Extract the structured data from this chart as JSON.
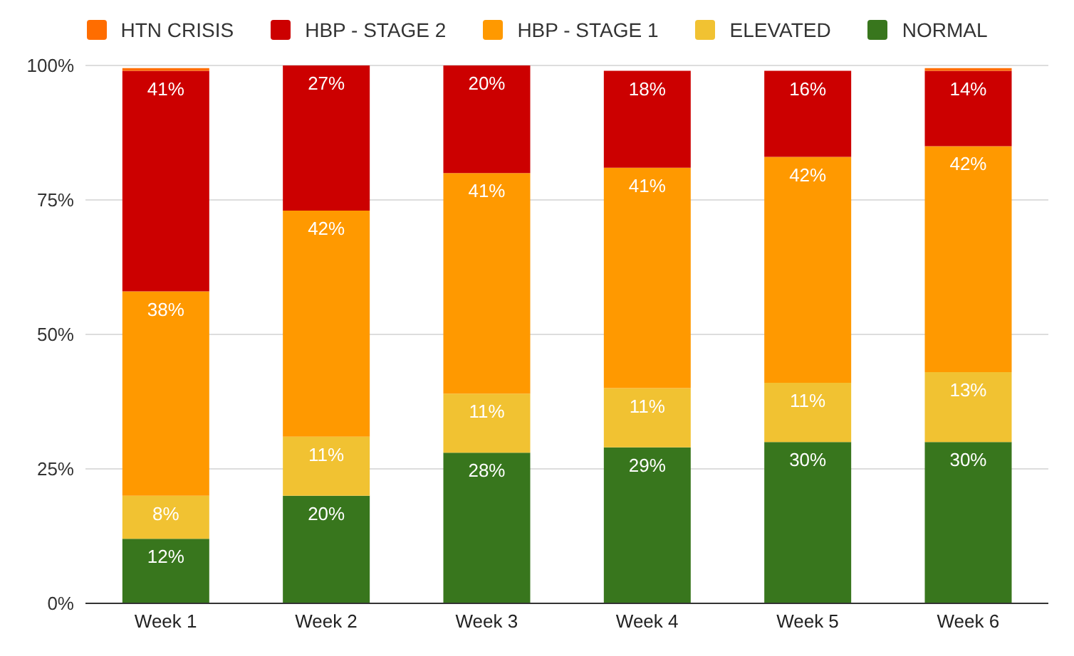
{
  "chart_data": {
    "type": "bar",
    "stacked": true,
    "categories": [
      "Week 1",
      "Week 2",
      "Week 3",
      "Week 4",
      "Week 5",
      "Week 6"
    ],
    "series": [
      {
        "name": "NORMAL",
        "color": "#38761d",
        "values": [
          12,
          20,
          28,
          29,
          30,
          30
        ],
        "value_labels": [
          "12%",
          "20%",
          "28%",
          "29%",
          "30%",
          "30%"
        ]
      },
      {
        "name": "ELEVATED",
        "color": "#f1c232",
        "values": [
          8,
          11,
          11,
          11,
          11,
          13
        ],
        "value_labels": [
          "8%",
          "11%",
          "11%",
          "11%",
          "11%",
          "13%"
        ]
      },
      {
        "name": "HBP - STAGE 1",
        "color": "#ff9900",
        "values": [
          38,
          42,
          41,
          41,
          42,
          42
        ],
        "value_labels": [
          "38%",
          "42%",
          "41%",
          "41%",
          "42%",
          "42%"
        ]
      },
      {
        "name": "HBP - STAGE 2",
        "color": "#cc0000",
        "values": [
          41,
          27,
          20,
          18,
          16,
          14
        ],
        "value_labels": [
          "41%",
          "27%",
          "20%",
          "18%",
          "16%",
          "14%"
        ]
      },
      {
        "name": "HTN CRISIS",
        "color": "#ff6d00",
        "values": [
          0.5,
          null,
          null,
          null,
          null,
          0.5
        ],
        "value_labels": [
          null,
          null,
          null,
          null,
          null,
          null
        ]
      }
    ],
    "ylim": [
      0,
      100
    ],
    "yticks": [
      {
        "value": 0,
        "label": "0%"
      },
      {
        "value": 25,
        "label": "25%"
      },
      {
        "value": 50,
        "label": "50%"
      },
      {
        "value": 75,
        "label": "75%"
      },
      {
        "value": 100,
        "label": "100%"
      }
    ],
    "grid": "y",
    "legend": "top"
  }
}
